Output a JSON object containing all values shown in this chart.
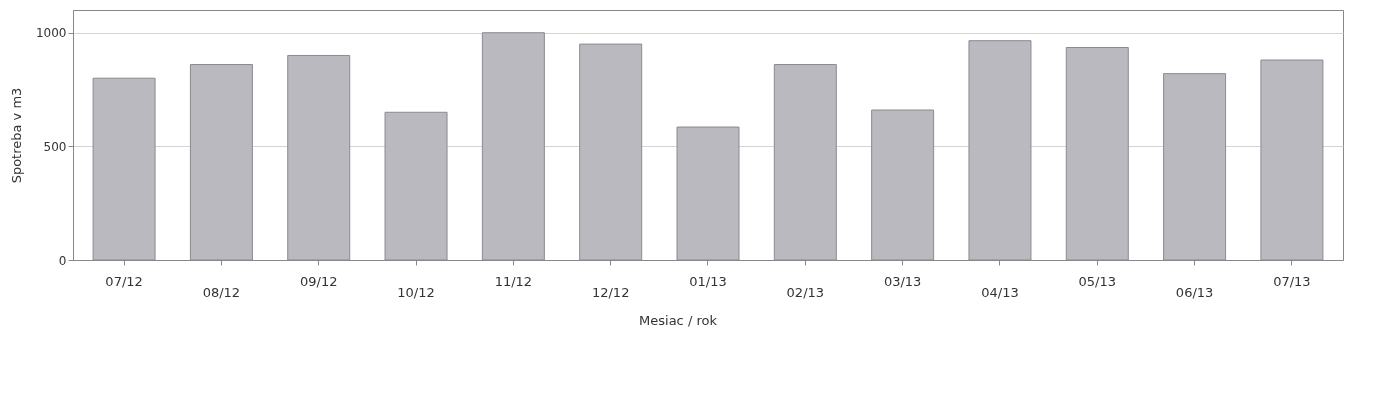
{
  "chart_data": {
    "type": "bar",
    "xlabel": "Mesiac / rok",
    "ylabel": "Spotreba v m3",
    "categories": [
      "07/12",
      "08/12",
      "09/12",
      "10/12",
      "11/12",
      "12/12",
      "01/13",
      "02/13",
      "03/13",
      "04/13",
      "05/13",
      "06/13",
      "07/13"
    ],
    "values": [
      800,
      860,
      900,
      650,
      1000,
      950,
      585,
      860,
      660,
      965,
      935,
      820,
      880
    ],
    "color": "#b9b9bf",
    "ylim": [
      0,
      1100
    ],
    "yticks": [
      0,
      500,
      1000
    ],
    "grid": "y"
  }
}
